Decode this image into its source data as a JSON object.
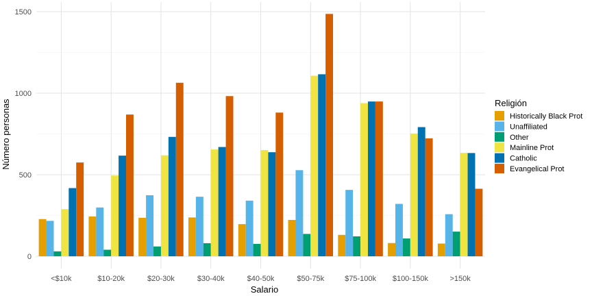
{
  "chart_data": {
    "type": "bar",
    "title": "",
    "xlabel": "Salario",
    "ylabel": "Número personas",
    "ylim": [
      0,
      1500
    ],
    "yticks": [
      0,
      500,
      1000,
      1500
    ],
    "grid": true,
    "legend_position": "right",
    "legend_title": "Religión",
    "categories": [
      "<$10k",
      "$10-20k",
      "$20-30k",
      "$30-40k",
      "$40-50k",
      "$50-75k",
      "$75-100k",
      "$100-150k",
      ">150k"
    ],
    "series": [
      {
        "name": "Historically Black Prot",
        "color": "#E69F00",
        "values": [
          228,
          244,
          236,
          238,
          197,
          223,
          131,
          81,
          78
        ]
      },
      {
        "name": "Unaffiliated",
        "color": "#56B4E9",
        "values": [
          217,
          299,
          374,
          365,
          341,
          528,
          407,
          321,
          258
        ]
      },
      {
        "name": "Other",
        "color": "#009E73",
        "values": [
          30,
          40,
          60,
          80,
          76,
          137,
          122,
          109,
          151
        ]
      },
      {
        "name": "Mainline Prot",
        "color": "#F0E442",
        "values": [
          289,
          495,
          619,
          655,
          651,
          1107,
          939,
          753,
          634
        ]
      },
      {
        "name": "Catholic",
        "color": "#0072B2",
        "values": [
          418,
          617,
          732,
          670,
          638,
          1116,
          949,
          792,
          633
        ]
      },
      {
        "name": "Evangelical Prot",
        "color": "#D55E00",
        "values": [
          575,
          869,
          1064,
          982,
          881,
          1486,
          949,
          723,
          414
        ]
      }
    ]
  }
}
